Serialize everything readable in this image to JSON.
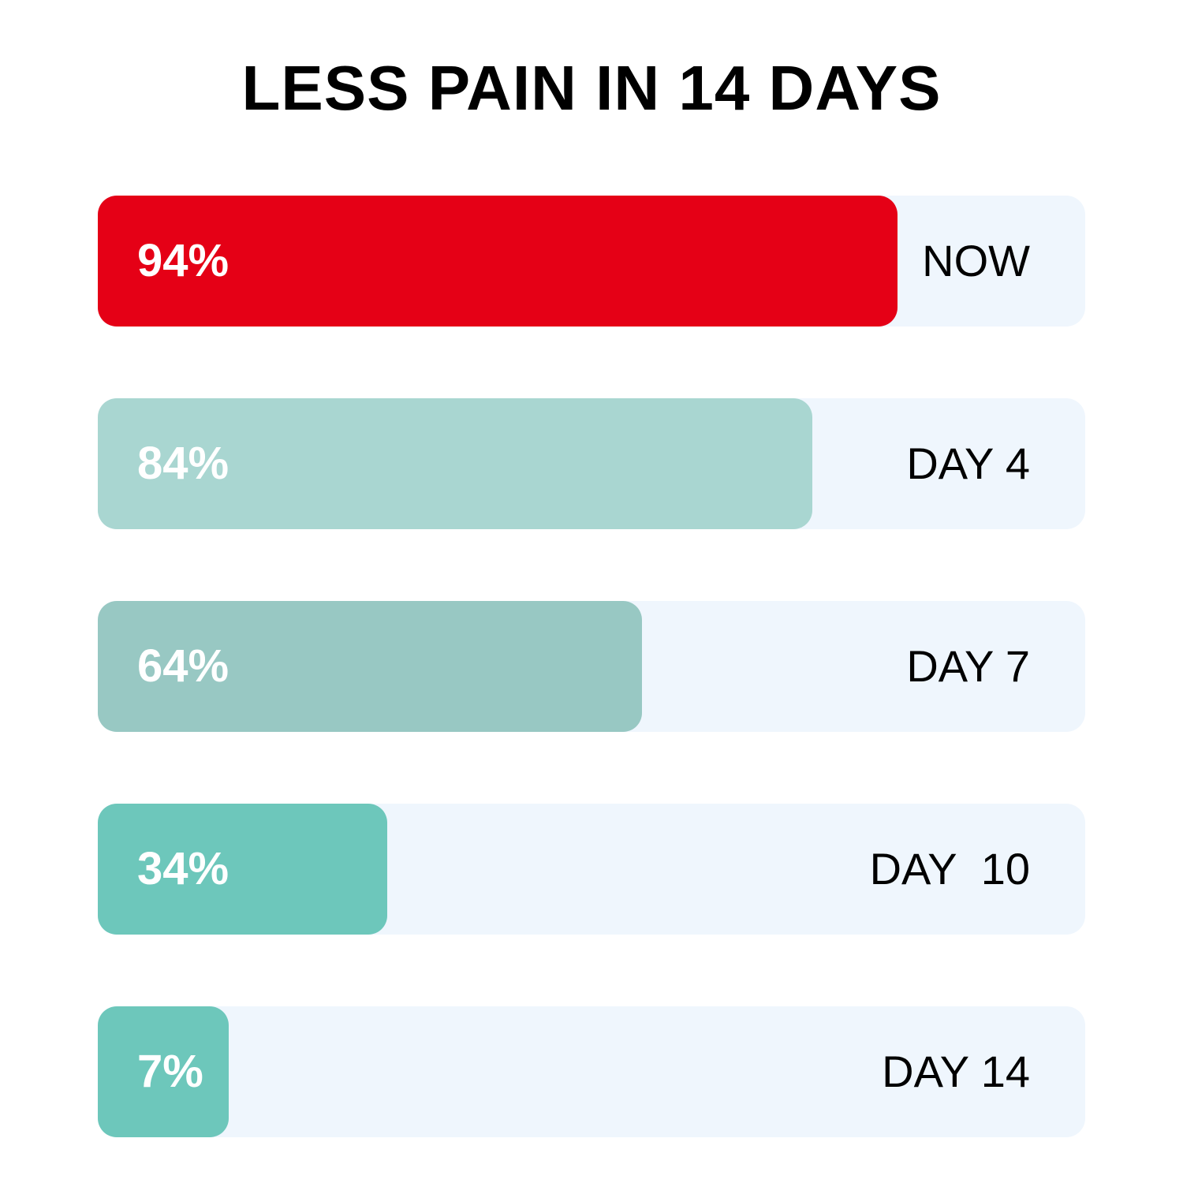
{
  "chart_data": {
    "type": "bar",
    "title": "LESS PAIN IN 14 DAYS",
    "categories": [
      "NOW",
      "DAY 4",
      "DAY 7",
      "DAY  10",
      "DAY 14"
    ],
    "values": [
      94,
      84,
      64,
      34,
      7
    ],
    "value_labels": [
      "94%",
      "84%",
      "64%",
      "34%",
      "7%"
    ],
    "colors": [
      "#e50016",
      "#a9d6d1",
      "#98c8c3",
      "#6dc7bb",
      "#6dc7bb"
    ],
    "track_color": "#eff6fd",
    "ylim": [
      0,
      100
    ]
  }
}
